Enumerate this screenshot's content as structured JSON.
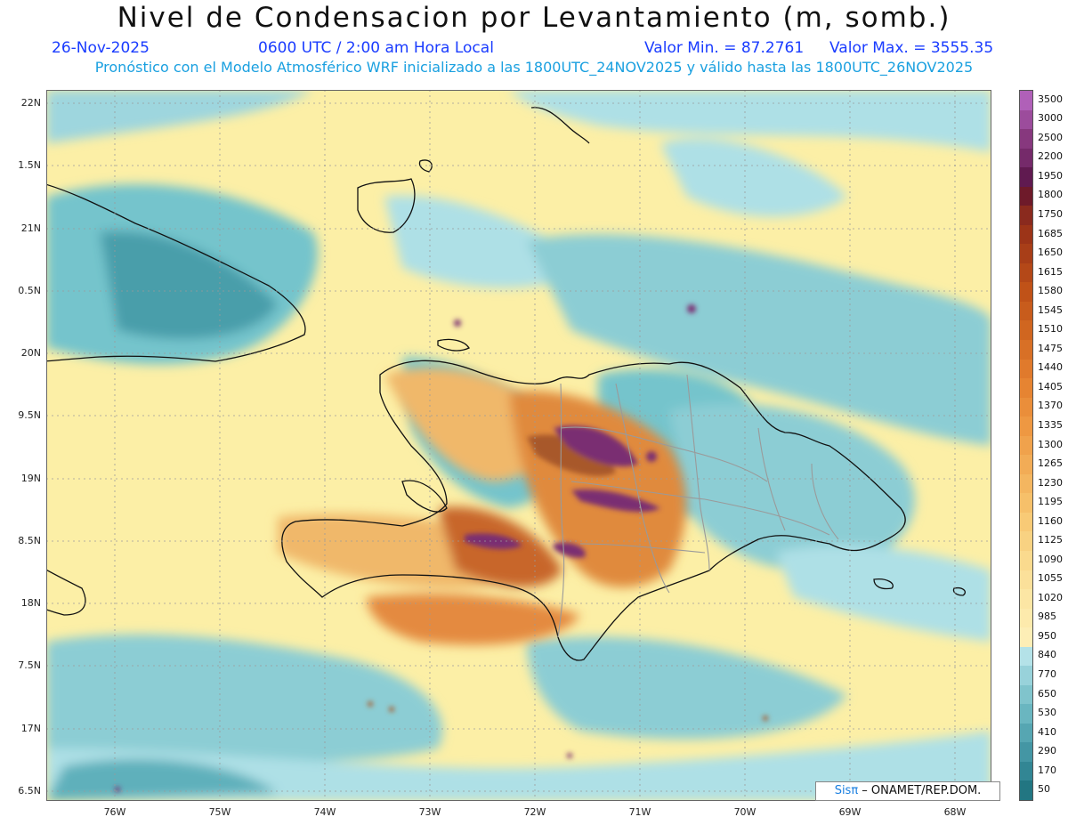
{
  "header": {
    "title": "Nivel de Condensacion por Levantamiento (m, somb.)",
    "date": "26-Nov-2025",
    "time": "0600 UTC / 2:00 am Hora Local",
    "min_label": "Valor Min. = 87.2761",
    "max_label": "Valor Max. = 3555.35",
    "model_line": "Pronóstico con el Modelo Atmosférico WRF inicializado a las 1800UTC_24NOV2025 y válido hasta las  1800UTC_26NOV2025"
  },
  "map": {
    "lat_ticks": [
      "22N",
      "1.5N",
      "21N",
      "0.5N",
      "20N",
      "9.5N",
      "19N",
      "8.5N",
      "18N",
      "7.5N",
      "17N",
      "6.5N"
    ],
    "lon_ticks": [
      "76W",
      "75W",
      "74W",
      "73W",
      "72W",
      "71W",
      "70W",
      "69W",
      "68W"
    ],
    "colors": {
      "low_teal": "#2e8a9a",
      "mid_teal": "#74c4cc",
      "light_cyan": "#aee0e6",
      "pale_yellow": "#fcefa6",
      "orange": "#e08a3c",
      "brown": "#a8582a",
      "purple": "#7a2e72"
    }
  },
  "colorbar": {
    "labels": [
      "3500",
      "3000",
      "2500",
      "2200",
      "1950",
      "1800",
      "1750",
      "1685",
      "1650",
      "1615",
      "1580",
      "1545",
      "1510",
      "1475",
      "1440",
      "1405",
      "1370",
      "1335",
      "1300",
      "1265",
      "1230",
      "1195",
      "1160",
      "1125",
      "1090",
      "1055",
      "1020",
      "985",
      "950",
      "840",
      "770",
      "650",
      "530",
      "410",
      "290",
      "170",
      "50"
    ],
    "colors": [
      "#b060b8",
      "#9c4c9c",
      "#87387e",
      "#752a6a",
      "#601a50",
      "#6e1a2a",
      "#8a2a1e",
      "#9c3418",
      "#a83e18",
      "#b44818",
      "#c05218",
      "#c85c1c",
      "#d06620",
      "#d87026",
      "#e07a2c",
      "#e68432",
      "#ea8e3a",
      "#ee9842",
      "#f0a24c",
      "#f2ac56",
      "#f4b660",
      "#f6c06a",
      "#f8ca76",
      "#f8d282",
      "#fada8e",
      "#fbe09a",
      "#fce6a4",
      "#fdeaac",
      "#fdeeb6",
      "#b4e2e8",
      "#98d2da",
      "#80c4cc",
      "#6ab6c0",
      "#56a6b2",
      "#4496a4",
      "#328694",
      "#227682"
    ]
  },
  "credit": {
    "brand": "Sisπ",
    "text": " – ONAMET/REP.DOM."
  }
}
